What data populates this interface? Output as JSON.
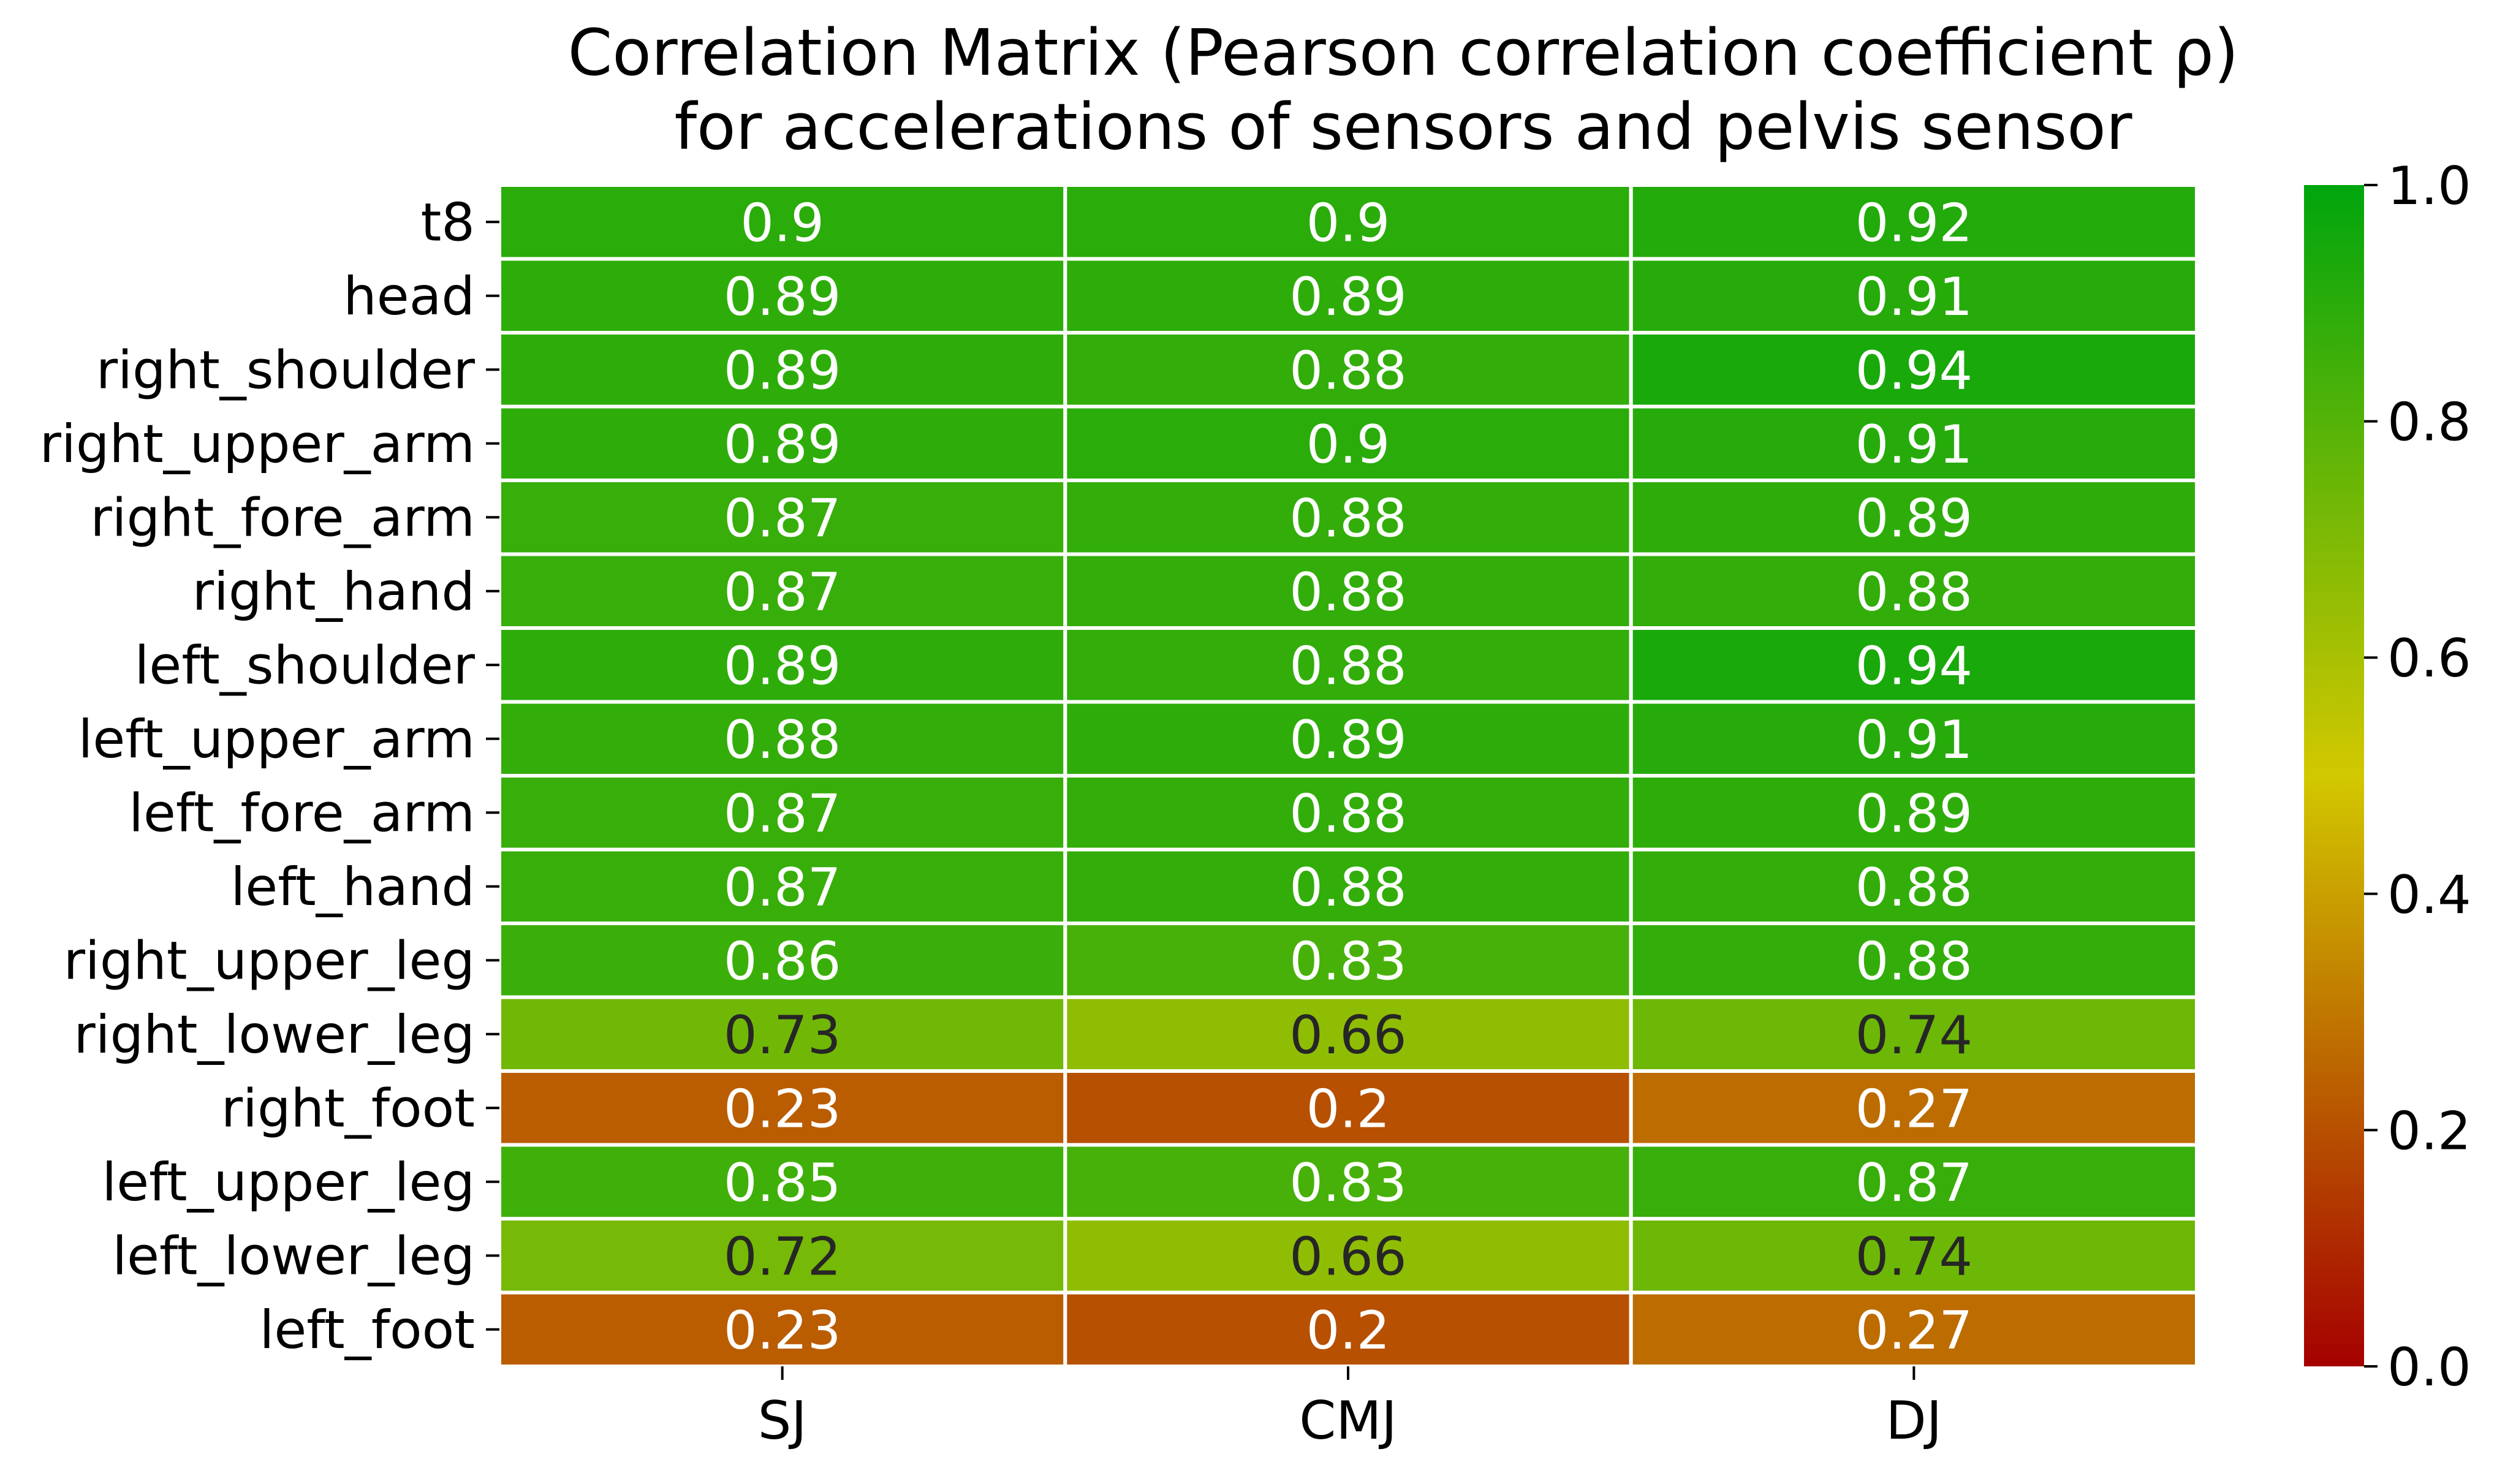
{
  "chart_data": {
    "type": "heatmap",
    "title_lines": [
      "Correlation Matrix (Pearson correlation coefficient ρ)",
      "for accelerations of sensors and pelvis sensor"
    ],
    "xlabel": "",
    "ylabel": "",
    "columns": [
      "SJ",
      "CMJ",
      "DJ"
    ],
    "rows": [
      "t8",
      "head",
      "right_shoulder",
      "right_upper_arm",
      "right_fore_arm",
      "right_hand",
      "left_shoulder",
      "left_upper_arm",
      "left_fore_arm",
      "left_hand",
      "right_upper_leg",
      "right_lower_leg",
      "right_foot",
      "left_upper_leg",
      "left_lower_leg",
      "left_foot"
    ],
    "values": [
      [
        0.9,
        0.9,
        0.92
      ],
      [
        0.89,
        0.89,
        0.91
      ],
      [
        0.89,
        0.88,
        0.94
      ],
      [
        0.89,
        0.9,
        0.91
      ],
      [
        0.87,
        0.88,
        0.89
      ],
      [
        0.87,
        0.88,
        0.88
      ],
      [
        0.89,
        0.88,
        0.94
      ],
      [
        0.88,
        0.89,
        0.91
      ],
      [
        0.87,
        0.88,
        0.89
      ],
      [
        0.87,
        0.88,
        0.88
      ],
      [
        0.86,
        0.83,
        0.88
      ],
      [
        0.73,
        0.66,
        0.74
      ],
      [
        0.23,
        0.2,
        0.27
      ],
      [
        0.85,
        0.83,
        0.87
      ],
      [
        0.72,
        0.66,
        0.74
      ],
      [
        0.23,
        0.2,
        0.27
      ]
    ],
    "color_range": [
      0.0,
      1.0
    ],
    "colorbar_ticks": [
      "0.0",
      "0.2",
      "0.4",
      "0.6",
      "0.8",
      "1.0"
    ],
    "colormap": [
      "#a50000",
      "#d2c800",
      "#00a50d"
    ],
    "text_colors": {
      "light": "#ffffff",
      "dark": "#262626"
    },
    "grid": false
  }
}
